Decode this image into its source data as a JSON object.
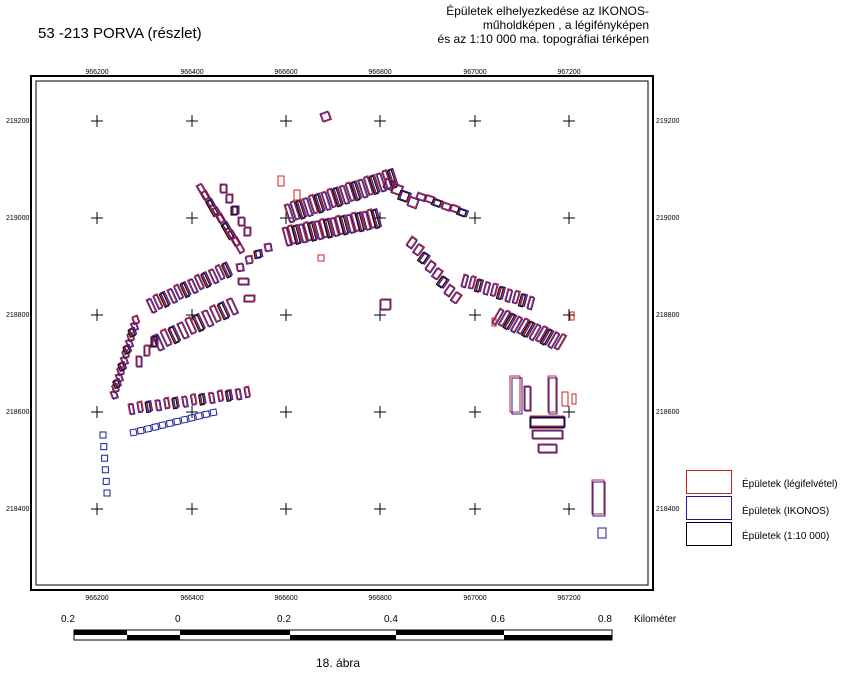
{
  "title": "53 -213 PORVA (részlet)",
  "header": {
    "lines": [
      "Épületek elhelyezkedése az IKONOS-",
      "műholdképen , a légifényképen",
      "és az 1:10 000 ma. topográfiai térképen"
    ]
  },
  "map": {
    "x_ticks": [
      "966200",
      "966400",
      "966600",
      "966800",
      "967000",
      "967200"
    ],
    "y_ticks": [
      "219200",
      "219000",
      "218800",
      "218600",
      "218400"
    ],
    "layer_colors": {
      "aerial": "#cc2020",
      "ikonos": "#1c1c9c",
      "topo": "#000000"
    }
  },
  "legend": {
    "items": [
      {
        "label": "Épületek (légifelvétel)",
        "color": "#cc2020"
      },
      {
        "label": "Épületek (IKONOS)",
        "color": "#1c1c9c"
      },
      {
        "label": "Épületek (1:10 000)",
        "color": "#000000"
      }
    ]
  },
  "scale_bar": {
    "labels": [
      "0.2",
      "0",
      "0.2",
      "0.4",
      "0.6",
      "0.8"
    ],
    "unit": "Kilométer"
  },
  "caption": "18. ábra"
}
